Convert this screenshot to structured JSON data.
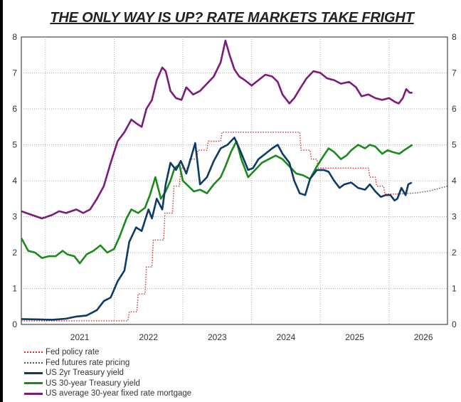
{
  "title": "THE ONLY WAY IS UP? RATE MARKETS TAKE FRIGHT",
  "chart_data": {
    "type": "line",
    "title": "THE ONLY WAY IS UP? RATE MARKETS TAKE FRIGHT",
    "xlabel": "",
    "ylabel": "",
    "xlim": [
      2020.65,
      2026.85
    ],
    "ylim": [
      0,
      8
    ],
    "x_ticks": [
      "2021",
      "2022",
      "2023",
      "2024",
      "2025",
      "2026"
    ],
    "y_ticks_left": [
      "0",
      "1",
      "2",
      "3",
      "4",
      "5",
      "6",
      "7",
      "8"
    ],
    "y_ticks_right": [
      "0",
      "1",
      "2",
      "3",
      "4",
      "5",
      "6",
      "7",
      "8"
    ],
    "grid": "dotted",
    "legend_position": "bottom-left",
    "series": [
      {
        "name": "Fed policy rate",
        "color": "#d32f2f",
        "style": "dotted",
        "points": [
          [
            2020.65,
            0.1
          ],
          [
            2022.2,
            0.1
          ],
          [
            2022.22,
            0.35
          ],
          [
            2022.33,
            0.35
          ],
          [
            2022.35,
            0.85
          ],
          [
            2022.45,
            0.85
          ],
          [
            2022.47,
            1.6
          ],
          [
            2022.55,
            1.6
          ],
          [
            2022.57,
            2.35
          ],
          [
            2022.72,
            2.35
          ],
          [
            2022.74,
            3.1
          ],
          [
            2022.85,
            3.1
          ],
          [
            2022.87,
            3.85
          ],
          [
            2022.95,
            3.85
          ],
          [
            2022.97,
            4.35
          ],
          [
            2023.08,
            4.35
          ],
          [
            2023.1,
            4.6
          ],
          [
            2023.2,
            4.6
          ],
          [
            2023.22,
            4.85
          ],
          [
            2023.35,
            4.85
          ],
          [
            2023.37,
            5.1
          ],
          [
            2023.55,
            5.1
          ],
          [
            2023.57,
            5.35
          ],
          [
            2024.7,
            5.35
          ],
          [
            2024.72,
            4.85
          ],
          [
            2024.85,
            4.85
          ],
          [
            2024.87,
            4.6
          ],
          [
            2024.95,
            4.6
          ],
          [
            2024.97,
            4.35
          ],
          [
            2025.7,
            4.35
          ],
          [
            2025.72,
            4.1
          ],
          [
            2025.8,
            4.1
          ],
          [
            2025.82,
            3.85
          ],
          [
            2025.92,
            3.85
          ],
          [
            2025.94,
            3.63
          ],
          [
            2026.12,
            3.63
          ]
        ]
      },
      {
        "name": "Fed futures rate pricing",
        "color": "#555555",
        "style": "dotted",
        "points": [
          [
            2026.12,
            3.63
          ],
          [
            2026.4,
            3.66
          ],
          [
            2026.6,
            3.72
          ],
          [
            2026.85,
            3.85
          ]
        ]
      },
      {
        "name": "US 2yr Treasury yield",
        "color": "#0d3b66",
        "style": "solid",
        "points": [
          [
            2020.65,
            0.15
          ],
          [
            2020.9,
            0.14
          ],
          [
            2021.1,
            0.13
          ],
          [
            2021.3,
            0.16
          ],
          [
            2021.45,
            0.22
          ],
          [
            2021.6,
            0.25
          ],
          [
            2021.75,
            0.4
          ],
          [
            2021.85,
            0.65
          ],
          [
            2021.95,
            0.75
          ],
          [
            2022.05,
            1.2
          ],
          [
            2022.15,
            1.5
          ],
          [
            2022.22,
            2.3
          ],
          [
            2022.32,
            2.7
          ],
          [
            2022.4,
            2.6
          ],
          [
            2022.5,
            3.2
          ],
          [
            2022.55,
            2.95
          ],
          [
            2022.62,
            3.5
          ],
          [
            2022.7,
            3.2
          ],
          [
            2022.75,
            3.9
          ],
          [
            2022.82,
            4.5
          ],
          [
            2022.9,
            4.3
          ],
          [
            2022.97,
            4.55
          ],
          [
            2023.05,
            4.2
          ],
          [
            2023.12,
            4.65
          ],
          [
            2023.18,
            5.05
          ],
          [
            2023.25,
            3.9
          ],
          [
            2023.35,
            4.1
          ],
          [
            2023.45,
            4.55
          ],
          [
            2023.55,
            4.9
          ],
          [
            2023.65,
            5.0
          ],
          [
            2023.75,
            5.2
          ],
          [
            2023.82,
            4.9
          ],
          [
            2023.95,
            4.3
          ],
          [
            2024.02,
            4.35
          ],
          [
            2024.1,
            4.6
          ],
          [
            2024.2,
            4.75
          ],
          [
            2024.3,
            4.9
          ],
          [
            2024.38,
            5.0
          ],
          [
            2024.45,
            4.75
          ],
          [
            2024.55,
            4.5
          ],
          [
            2024.62,
            4.0
          ],
          [
            2024.7,
            3.65
          ],
          [
            2024.78,
            3.6
          ],
          [
            2024.85,
            4.05
          ],
          [
            2024.95,
            4.3
          ],
          [
            2025.05,
            4.3
          ],
          [
            2025.12,
            4.25
          ],
          [
            2025.2,
            4.0
          ],
          [
            2025.28,
            3.8
          ],
          [
            2025.35,
            3.9
          ],
          [
            2025.45,
            3.95
          ],
          [
            2025.55,
            3.8
          ],
          [
            2025.65,
            3.75
          ],
          [
            2025.72,
            3.9
          ],
          [
            2025.8,
            3.7
          ],
          [
            2025.88,
            3.55
          ],
          [
            2025.95,
            3.6
          ],
          [
            2026.02,
            3.6
          ],
          [
            2026.08,
            3.45
          ],
          [
            2026.12,
            3.5
          ],
          [
            2026.18,
            3.8
          ],
          [
            2026.24,
            3.6
          ],
          [
            2026.28,
            3.9
          ],
          [
            2026.33,
            3.95
          ]
        ]
      },
      {
        "name": "US 30-year Treasury yield",
        "color": "#1b8a1b",
        "style": "solid",
        "points": [
          [
            2020.65,
            2.4
          ],
          [
            2020.75,
            2.05
          ],
          [
            2020.85,
            2.0
          ],
          [
            2020.95,
            1.85
          ],
          [
            2021.05,
            1.9
          ],
          [
            2021.15,
            1.9
          ],
          [
            2021.25,
            2.05
          ],
          [
            2021.32,
            1.95
          ],
          [
            2021.42,
            1.9
          ],
          [
            2021.5,
            1.7
          ],
          [
            2021.6,
            1.95
          ],
          [
            2021.7,
            2.05
          ],
          [
            2021.8,
            2.2
          ],
          [
            2021.9,
            2.0
          ],
          [
            2022.0,
            2.1
          ],
          [
            2022.08,
            2.45
          ],
          [
            2022.18,
            2.95
          ],
          [
            2022.25,
            3.2
          ],
          [
            2022.35,
            3.1
          ],
          [
            2022.45,
            3.25
          ],
          [
            2022.52,
            3.6
          ],
          [
            2022.6,
            4.1
          ],
          [
            2022.68,
            3.5
          ],
          [
            2022.75,
            3.7
          ],
          [
            2022.82,
            4.0
          ],
          [
            2022.88,
            4.35
          ],
          [
            2022.95,
            4.45
          ],
          [
            2023.0,
            4.0
          ],
          [
            2023.08,
            3.85
          ],
          [
            2023.16,
            3.7
          ],
          [
            2023.25,
            3.75
          ],
          [
            2023.35,
            3.65
          ],
          [
            2023.45,
            3.9
          ],
          [
            2023.55,
            4.1
          ],
          [
            2023.62,
            4.4
          ],
          [
            2023.7,
            4.8
          ],
          [
            2023.78,
            5.1
          ],
          [
            2023.85,
            4.6
          ],
          [
            2023.95,
            4.1
          ],
          [
            2024.05,
            4.3
          ],
          [
            2024.15,
            4.5
          ],
          [
            2024.25,
            4.6
          ],
          [
            2024.35,
            4.7
          ],
          [
            2024.45,
            4.6
          ],
          [
            2024.55,
            4.4
          ],
          [
            2024.65,
            4.2
          ],
          [
            2024.75,
            4.15
          ],
          [
            2024.85,
            4.05
          ],
          [
            2024.95,
            4.4
          ],
          [
            2025.05,
            4.7
          ],
          [
            2025.12,
            4.9
          ],
          [
            2025.2,
            4.8
          ],
          [
            2025.3,
            4.6
          ],
          [
            2025.38,
            4.7
          ],
          [
            2025.45,
            4.85
          ],
          [
            2025.55,
            5.0
          ],
          [
            2025.65,
            4.9
          ],
          [
            2025.72,
            5.0
          ],
          [
            2025.8,
            4.95
          ],
          [
            2025.9,
            4.75
          ],
          [
            2025.98,
            4.85
          ],
          [
            2026.05,
            4.8
          ],
          [
            2026.15,
            4.75
          ],
          [
            2026.22,
            4.85
          ],
          [
            2026.3,
            4.95
          ],
          [
            2026.34,
            5.0
          ]
        ]
      },
      {
        "name": "US average 30-year fixed rate mortgage",
        "color": "#7b1c7b",
        "style": "solid",
        "points": [
          [
            2020.65,
            3.15
          ],
          [
            2020.8,
            3.05
          ],
          [
            2020.95,
            2.95
          ],
          [
            2021.1,
            3.05
          ],
          [
            2021.2,
            3.15
          ],
          [
            2021.3,
            3.1
          ],
          [
            2021.45,
            3.2
          ],
          [
            2021.55,
            3.1
          ],
          [
            2021.65,
            3.2
          ],
          [
            2021.75,
            3.5
          ],
          [
            2021.85,
            3.85
          ],
          [
            2021.95,
            4.5
          ],
          [
            2022.05,
            5.1
          ],
          [
            2022.15,
            5.35
          ],
          [
            2022.25,
            5.7
          ],
          [
            2022.32,
            5.6
          ],
          [
            2022.4,
            5.5
          ],
          [
            2022.47,
            6.0
          ],
          [
            2022.55,
            6.25
          ],
          [
            2022.62,
            6.8
          ],
          [
            2022.7,
            7.15
          ],
          [
            2022.75,
            7.05
          ],
          [
            2022.82,
            6.5
          ],
          [
            2022.9,
            6.3
          ],
          [
            2022.98,
            6.25
          ],
          [
            2023.05,
            6.6
          ],
          [
            2023.15,
            6.4
          ],
          [
            2023.25,
            6.5
          ],
          [
            2023.35,
            6.7
          ],
          [
            2023.45,
            6.9
          ],
          [
            2023.55,
            7.3
          ],
          [
            2023.62,
            7.9
          ],
          [
            2023.68,
            7.5
          ],
          [
            2023.75,
            7.1
          ],
          [
            2023.82,
            6.9
          ],
          [
            2023.9,
            6.8
          ],
          [
            2024.0,
            6.65
          ],
          [
            2024.1,
            6.8
          ],
          [
            2024.2,
            6.95
          ],
          [
            2024.3,
            6.9
          ],
          [
            2024.38,
            6.75
          ],
          [
            2024.45,
            6.4
          ],
          [
            2024.55,
            6.15
          ],
          [
            2024.62,
            6.3
          ],
          [
            2024.7,
            6.55
          ],
          [
            2024.8,
            6.85
          ],
          [
            2024.9,
            7.05
          ],
          [
            2025.0,
            7.0
          ],
          [
            2025.1,
            6.85
          ],
          [
            2025.2,
            6.8
          ],
          [
            2025.3,
            6.7
          ],
          [
            2025.42,
            6.75
          ],
          [
            2025.52,
            6.6
          ],
          [
            2025.6,
            6.35
          ],
          [
            2025.7,
            6.4
          ],
          [
            2025.8,
            6.3
          ],
          [
            2025.9,
            6.25
          ],
          [
            2026.0,
            6.3
          ],
          [
            2026.08,
            6.2
          ],
          [
            2026.14,
            6.15
          ],
          [
            2026.2,
            6.3
          ],
          [
            2026.25,
            6.55
          ],
          [
            2026.3,
            6.45
          ],
          [
            2026.34,
            6.45
          ]
        ]
      }
    ]
  },
  "legend": [
    {
      "label": "Fed policy rate",
      "color": "#d32f2f",
      "style": "dotted"
    },
    {
      "label": "Fed futures rate pricing",
      "color": "#555555",
      "style": "dotted"
    },
    {
      "label": "US 2yr Treasury yield",
      "color": "#0d3b66",
      "style": "solid"
    },
    {
      "label": "US 30-year Treasury yield",
      "color": "#1b8a1b",
      "style": "solid"
    },
    {
      "label": "US average 30-year fixed rate mortgage",
      "color": "#7b1c7b",
      "style": "solid"
    }
  ]
}
